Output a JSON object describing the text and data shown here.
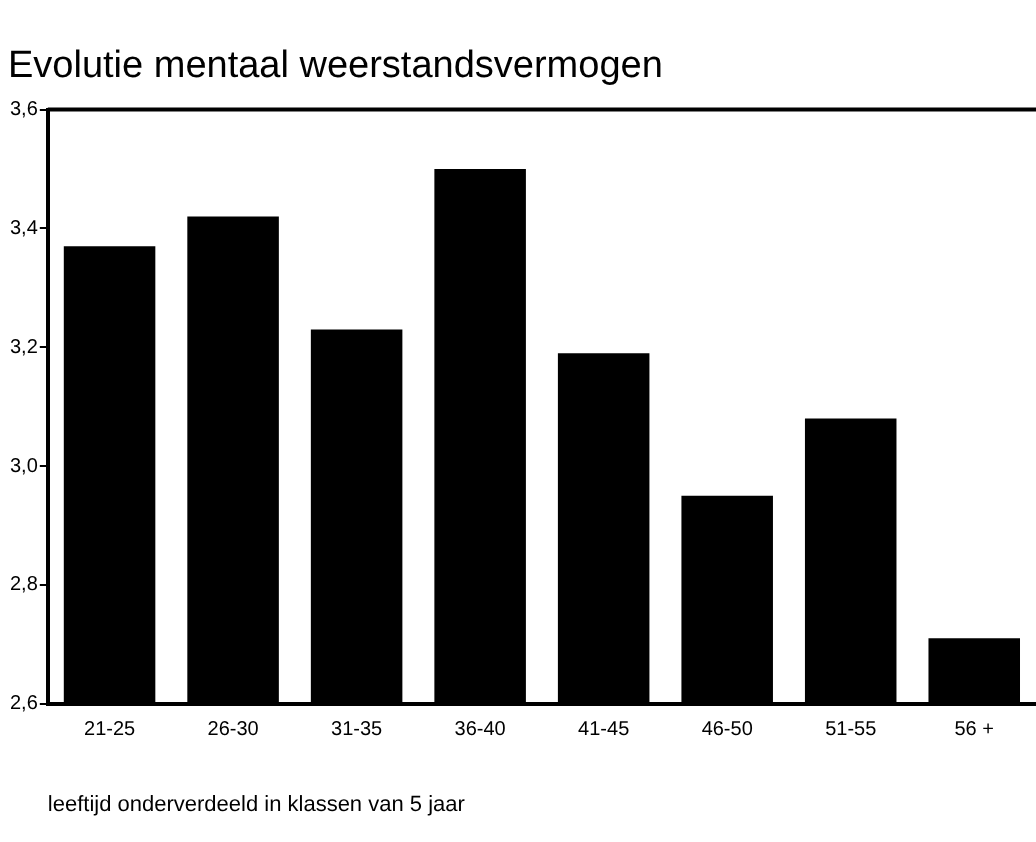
{
  "chart_data": {
    "type": "bar",
    "title": "Evolutie mentaal weerstandsvermogen",
    "xlabel": "leeftijd onderverdeeld in klassen van 5 jaar",
    "categories": [
      "21-25",
      "26-30",
      "31-35",
      "36-40",
      "41-45",
      "46-50",
      "51-55",
      "56 +"
    ],
    "values": [
      3.37,
      3.42,
      3.23,
      3.5,
      3.19,
      2.95,
      3.08,
      2.71
    ],
    "color": "#000000",
    "ylim": [
      2.6,
      3.6
    ],
    "yticks": [
      {
        "value": 2.6,
        "label": "2,6"
      },
      {
        "value": 2.8,
        "label": "2,8"
      },
      {
        "value": 3.0,
        "label": "3,0"
      },
      {
        "value": 3.2,
        "label": "3,2"
      },
      {
        "value": 3.4,
        "label": "3,4"
      },
      {
        "value": 3.6,
        "label": "3,6"
      }
    ],
    "legend": false
  }
}
